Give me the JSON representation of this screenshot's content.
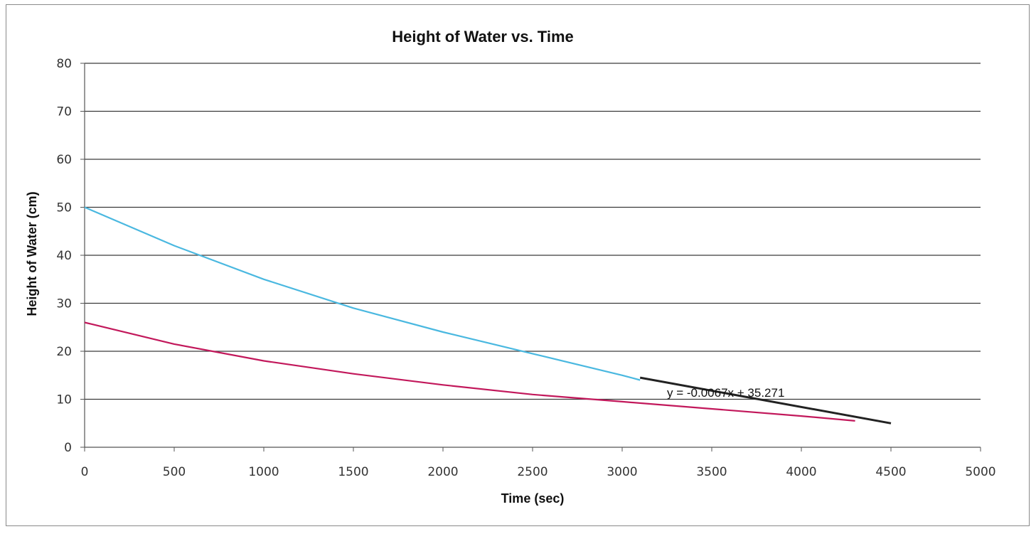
{
  "chart_data": {
    "type": "line",
    "title": "Height of Water vs. Time",
    "xlabel": "Time (sec)",
    "ylabel": "Height of Water (cm)",
    "xlim": [
      0,
      5000
    ],
    "ylim": [
      0,
      80
    ],
    "x_ticks": [
      "0",
      "500",
      "1000",
      "1500",
      "2000",
      "2500",
      "3000",
      "3500",
      "4000",
      "4500",
      "5000"
    ],
    "y_ticks": [
      "0",
      "10",
      "20",
      "30",
      "40",
      "50",
      "60",
      "70",
      "80"
    ],
    "grid": true,
    "legend": "none",
    "series": [
      {
        "color": "#4ab8e0",
        "x": [
          0,
          500,
          1000,
          1500,
          2000,
          2500,
          3000,
          3100
        ],
        "y": [
          50,
          42,
          35,
          29,
          24,
          19.5,
          15,
          14
        ]
      },
      {
        "color": "#c2185b",
        "x": [
          0,
          500,
          1000,
          1500,
          2000,
          2500,
          3000,
          3500,
          4000,
          4300
        ],
        "y": [
          26,
          21.5,
          18,
          15.3,
          13,
          11,
          9.5,
          8,
          6.5,
          5.5
        ]
      },
      {
        "color": "#222222",
        "x": [
          3100,
          4500
        ],
        "y": [
          14.5,
          5
        ]
      }
    ],
    "annotations": [
      {
        "text": "y = -0.0067x + 35.271",
        "x": 3250,
        "y": 10.5
      }
    ]
  }
}
